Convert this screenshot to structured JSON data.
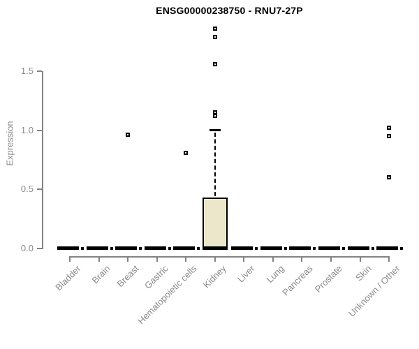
{
  "title": "ENSG00000238750 - RNU7-27P",
  "chart_data": {
    "type": "boxplot",
    "title": "ENSG00000238750 - RNU7-27P",
    "xlabel": "",
    "ylabel": "Expression",
    "ylim": [
      0,
      1.9
    ],
    "yticks": [
      "0.0",
      "0.5",
      "1.0",
      "1.5"
    ],
    "ytick_values": [
      0.0,
      0.5,
      1.0,
      1.5
    ],
    "grid": false,
    "legend": "none",
    "axis_color": "#838383",
    "label_color": "#8a8a8a",
    "box_fill_color": "#ece7cb",
    "box_border_color": "#000000",
    "outlier_marker": "open-square",
    "categories": [
      "Bladder",
      "Brain",
      "Breast",
      "Gastric",
      "Hematopoietic cells",
      "Kidney",
      "Liver",
      "Lung",
      "Pancreas",
      "Prostate",
      "Skin",
      "Unknown / Other"
    ],
    "boxes": [
      {
        "category": "Bladder",
        "q1": 0,
        "median": 0,
        "q3": 0,
        "whisker_low": 0,
        "whisker_high": 0,
        "outliers": []
      },
      {
        "category": "Brain",
        "q1": 0,
        "median": 0,
        "q3": 0,
        "whisker_low": 0,
        "whisker_high": 0,
        "outliers": []
      },
      {
        "category": "Breast",
        "q1": 0,
        "median": 0,
        "q3": 0,
        "whisker_low": 0,
        "whisker_high": 0,
        "outliers": [
          0.96
        ]
      },
      {
        "category": "Gastric",
        "q1": 0,
        "median": 0,
        "q3": 0,
        "whisker_low": 0,
        "whisker_high": 0,
        "outliers": []
      },
      {
        "category": "Hematopoietic cells",
        "q1": 0,
        "median": 0,
        "q3": 0,
        "whisker_low": 0,
        "whisker_high": 0,
        "outliers": [
          0.81
        ]
      },
      {
        "category": "Kidney",
        "q1": 0,
        "median": 0,
        "q3": 0.43,
        "whisker_low": 0,
        "whisker_high": 1.0,
        "outliers": [
          1.12,
          1.15,
          1.56,
          1.79,
          1.86
        ]
      },
      {
        "category": "Liver",
        "q1": 0,
        "median": 0,
        "q3": 0,
        "whisker_low": 0,
        "whisker_high": 0,
        "outliers": []
      },
      {
        "category": "Lung",
        "q1": 0,
        "median": 0,
        "q3": 0,
        "whisker_low": 0,
        "whisker_high": 0,
        "outliers": []
      },
      {
        "category": "Pancreas",
        "q1": 0,
        "median": 0,
        "q3": 0,
        "whisker_low": 0,
        "whisker_high": 0,
        "outliers": []
      },
      {
        "category": "Prostate",
        "q1": 0,
        "median": 0,
        "q3": 0,
        "whisker_low": 0,
        "whisker_high": 0,
        "outliers": []
      },
      {
        "category": "Skin",
        "q1": 0,
        "median": 0,
        "q3": 0,
        "whisker_low": 0,
        "whisker_high": 0,
        "outliers": []
      },
      {
        "category": "Unknown / Other",
        "q1": 0,
        "median": 0,
        "q3": 0,
        "whisker_low": 0,
        "whisker_high": 0,
        "outliers": [
          0.6,
          0.95,
          1.02
        ]
      }
    ]
  }
}
